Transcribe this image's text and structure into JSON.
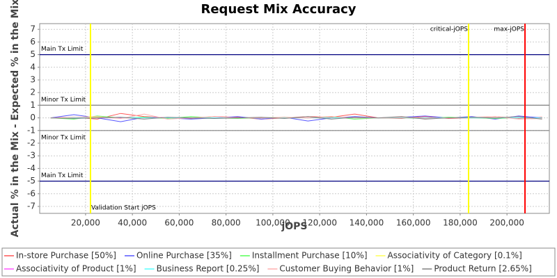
{
  "chart_data": {
    "type": "line",
    "title": "Request Mix Accuracy",
    "x_label": "jOPS",
    "y_label": "Actual % in the Mix - Expected % in the Mix",
    "x": [
      5000,
      15000,
      25000,
      35000,
      45000,
      55000,
      65000,
      75000,
      85000,
      95000,
      105000,
      115000,
      125000,
      135000,
      145000,
      155000,
      165000,
      175000,
      185000,
      195000,
      205000,
      215000
    ],
    "series": [
      {
        "name": "In-store Purchase [50%]",
        "color": "#ff5555",
        "values": [
          0,
          0.05,
          -0.1,
          0.35,
          0.1,
          0,
          -0.05,
          0.1,
          0.05,
          -0.1,
          0,
          0.1,
          0.05,
          0.3,
          0,
          -0.05,
          0.1,
          -0.05,
          0,
          0.1,
          -0.05,
          0.05
        ]
      },
      {
        "name": "Online Purchase [35%]",
        "color": "#5555ff",
        "values": [
          0,
          0.25,
          0,
          -0.3,
          0.05,
          0,
          -0.1,
          0,
          0.1,
          -0.1,
          0.05,
          -0.25,
          0,
          0.1,
          0,
          0.05,
          0.15,
          0,
          0.1,
          -0.1,
          0.15,
          0
        ]
      },
      {
        "name": "Installment Purchase [10%]",
        "color": "#55ff55",
        "values": [
          0,
          -0.1,
          0.15,
          0,
          0.05,
          -0.05,
          0.1,
          0,
          -0.05,
          0,
          0.05,
          0,
          0.1,
          -0.1,
          0,
          0,
          -0.05,
          0.05,
          0,
          -0.05,
          0,
          0
        ]
      },
      {
        "name": "Associativity of Category [0.1%]",
        "color": "#ffff55",
        "values": [
          0,
          0,
          0.05,
          0,
          0,
          0,
          0,
          0,
          0,
          0,
          0,
          0,
          0,
          0,
          0,
          0,
          0,
          0,
          0,
          0,
          0,
          0
        ]
      },
      {
        "name": "Associativity of Product [1%]",
        "color": "#ff55ff",
        "values": [
          0,
          0,
          0,
          0,
          0,
          0.02,
          0,
          0,
          0,
          0,
          0,
          0,
          0,
          0,
          0,
          0,
          0,
          0,
          0,
          0,
          0,
          0
        ]
      },
      {
        "name": "Business Report [0.25%]",
        "color": "#55ffff",
        "values": [
          0,
          0,
          0,
          0.05,
          0,
          0,
          0,
          0,
          0,
          0,
          0,
          0,
          0,
          0,
          0,
          0,
          0,
          0,
          0,
          0,
          0,
          0
        ]
      },
      {
        "name": "Customer Buying Behavior [1%]",
        "color": "#ffafaf",
        "values": [
          0,
          0.05,
          0.1,
          -0.05,
          0.3,
          -0.1,
          0,
          0.1,
          0,
          0,
          0.05,
          0,
          0.1,
          0,
          0,
          0.05,
          -0.05,
          0,
          0.05,
          0.1,
          -0.1,
          -0.05
        ]
      },
      {
        "name": "Product Return [2.65%]",
        "color": "#808080",
        "values": [
          0,
          -0.05,
          0,
          0.05,
          -0.1,
          0.05,
          0,
          -0.05,
          0,
          0.05,
          -0.05,
          0.1,
          -0.1,
          0.05,
          0,
          0.1,
          -0.1,
          0,
          0.05,
          0,
          0.1,
          -0.1
        ]
      }
    ],
    "xlim": [
      400,
      218100
    ],
    "ylim": [
      -7.55,
      7.45
    ],
    "xticks": [
      {
        "value": 20000,
        "label": "20,000"
      },
      {
        "value": 40000,
        "label": "40,000"
      },
      {
        "value": 60000,
        "label": "60,000"
      },
      {
        "value": 80000,
        "label": "80,000"
      },
      {
        "value": 100000,
        "label": "100,000"
      },
      {
        "value": 120000,
        "label": "120,000"
      },
      {
        "value": 140000,
        "label": "140,000"
      },
      {
        "value": 160000,
        "label": "160,000"
      },
      {
        "value": 180000,
        "label": "180,000"
      },
      {
        "value": 200000,
        "label": "200,000"
      }
    ],
    "yticks": [
      -7,
      -6,
      -5,
      -4,
      -3,
      -2,
      -1,
      0,
      1,
      2,
      3,
      4,
      5,
      6,
      7
    ],
    "grid": true,
    "hlines": [
      {
        "value": 5,
        "label": "Main Tx Limit",
        "color": "#000080"
      },
      {
        "value": 1,
        "label": "Minor Tx Limit",
        "color": "#808080"
      },
      {
        "value": -1,
        "label": "Minor Tx Limit",
        "color": "#808080"
      },
      {
        "value": -5,
        "label": "Main Tx Limit",
        "color": "#000080"
      }
    ],
    "vlines": [
      {
        "value": 22100,
        "label": "Validation Start jOPS",
        "color": "#ffff00"
      },
      {
        "value": 183600,
        "label": "critical-jOPS",
        "color": "#ffff00"
      },
      {
        "value": 207700,
        "label": "max-jOPS",
        "color": "#ff0000"
      }
    ],
    "legend": "bottom"
  }
}
